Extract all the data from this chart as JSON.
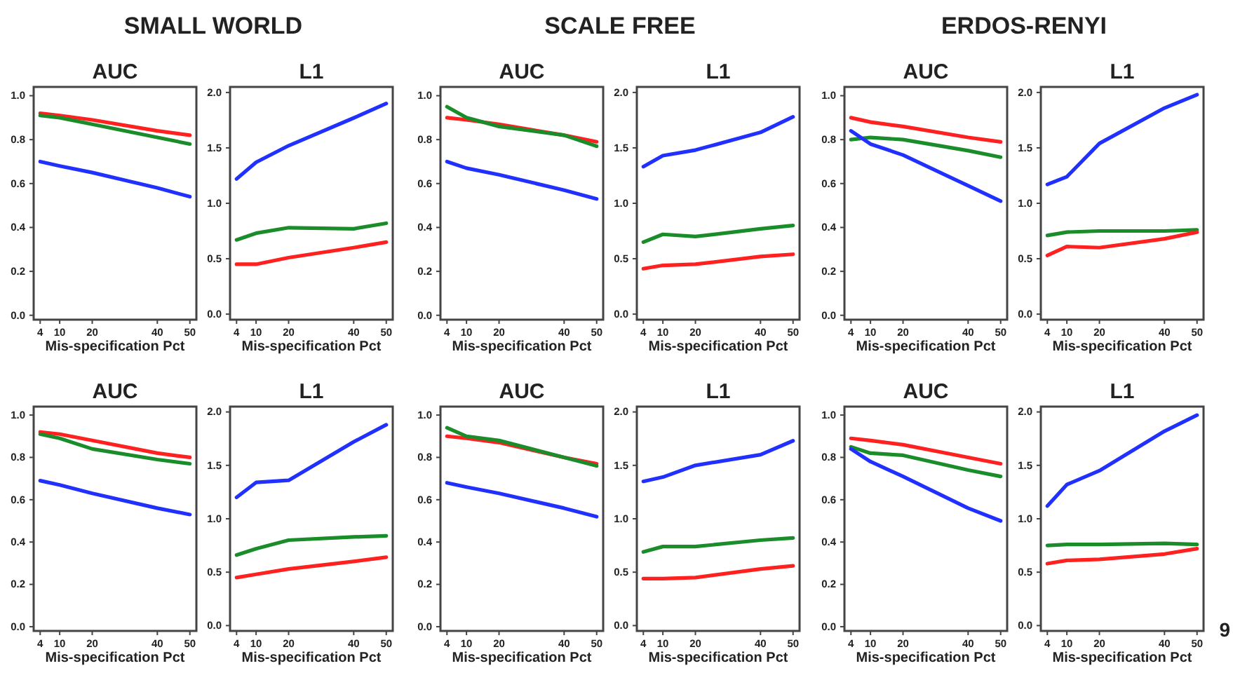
{
  "chart_data": [
    {
      "type": "line",
      "title": "AUC",
      "xlabel": "Mis-specification Pct",
      "annotations": [
        "SMALL WORLD"
      ],
      "x": [
        4,
        10,
        20,
        40,
        50
      ],
      "xlim": [
        2,
        52
      ],
      "xticks": [
        4,
        10,
        20,
        40,
        50
      ],
      "ylim": [
        -0.02,
        1.04
      ],
      "yticks": [
        {
          "value": 0,
          "label": "0.0"
        },
        {
          "value": 0.2,
          "label": "0.2"
        },
        {
          "value": 0.4,
          "label": "0.4"
        },
        {
          "value": 0.6,
          "label": "0.6"
        },
        {
          "value": 0.8,
          "label": "0.8"
        },
        {
          "value": 1,
          "label": "1.0"
        }
      ],
      "series": [
        {
          "color": "#ff2020",
          "values": [
            0.92,
            0.91,
            0.89,
            0.84,
            0.82
          ]
        },
        {
          "color": "#1a8c2a",
          "values": [
            0.91,
            0.9,
            0.87,
            0.81,
            0.78
          ]
        },
        {
          "color": "#2030ff",
          "values": [
            0.7,
            0.68,
            0.65,
            0.58,
            0.54
          ]
        }
      ]
    },
    {
      "type": "line",
      "title": "L1",
      "xlabel": "Mis-specification Pct",
      "x": [
        4,
        10,
        20,
        40,
        50
      ],
      "xlim": [
        2,
        52
      ],
      "xticks": [
        4,
        10,
        20,
        40,
        50
      ],
      "ylim": [
        -0.05,
        2.05
      ],
      "yticks": [
        {
          "value": 0,
          "label": "0.0"
        },
        {
          "value": 0.5,
          "label": "0.5"
        },
        {
          "value": 1,
          "label": "1.0"
        },
        {
          "value": 1.5,
          "label": "1.5"
        },
        {
          "value": 2,
          "label": "2.0"
        }
      ],
      "series": [
        {
          "color": "#2030ff",
          "values": [
            1.22,
            1.37,
            1.52,
            1.77,
            1.9
          ]
        },
        {
          "color": "#1a8c2a",
          "values": [
            0.67,
            0.73,
            0.78,
            0.77,
            0.82
          ]
        },
        {
          "color": "#ff2020",
          "values": [
            0.45,
            0.45,
            0.51,
            0.6,
            0.65
          ]
        }
      ]
    },
    {
      "type": "line",
      "title": "AUC",
      "xlabel": "Mis-specification Pct",
      "annotations": [
        "SCALE FREE"
      ],
      "x": [
        4,
        10,
        20,
        40,
        50
      ],
      "xlim": [
        2,
        52
      ],
      "xticks": [
        4,
        10,
        20,
        40,
        50
      ],
      "ylim": [
        -0.02,
        1.04
      ],
      "yticks": [
        {
          "value": 0,
          "label": "0.0"
        },
        {
          "value": 0.2,
          "label": "0.2"
        },
        {
          "value": 0.4,
          "label": "0.4"
        },
        {
          "value": 0.6,
          "label": "0.6"
        },
        {
          "value": 0.8,
          "label": "0.8"
        },
        {
          "value": 1,
          "label": "1.0"
        }
      ],
      "series": [
        {
          "color": "#ff2020",
          "values": [
            0.9,
            0.89,
            0.87,
            0.82,
            0.79
          ]
        },
        {
          "color": "#1a8c2a",
          "values": [
            0.95,
            0.9,
            0.86,
            0.82,
            0.77
          ]
        },
        {
          "color": "#2030ff",
          "values": [
            0.7,
            0.67,
            0.64,
            0.57,
            0.53
          ]
        }
      ]
    },
    {
      "type": "line",
      "title": "L1",
      "xlabel": "Mis-specification Pct",
      "x": [
        4,
        10,
        20,
        40,
        50
      ],
      "xlim": [
        2,
        52
      ],
      "xticks": [
        4,
        10,
        20,
        40,
        50
      ],
      "ylim": [
        -0.05,
        2.05
      ],
      "yticks": [
        {
          "value": 0,
          "label": "0.0"
        },
        {
          "value": 0.5,
          "label": "0.5"
        },
        {
          "value": 1,
          "label": "1.0"
        },
        {
          "value": 1.5,
          "label": "1.5"
        },
        {
          "value": 2,
          "label": "2.0"
        }
      ],
      "series": [
        {
          "color": "#2030ff",
          "values": [
            1.33,
            1.43,
            1.48,
            1.64,
            1.78
          ]
        },
        {
          "color": "#1a8c2a",
          "values": [
            0.65,
            0.72,
            0.7,
            0.77,
            0.8
          ]
        },
        {
          "color": "#ff2020",
          "values": [
            0.41,
            0.44,
            0.45,
            0.52,
            0.54
          ]
        }
      ]
    },
    {
      "type": "line",
      "title": "AUC",
      "xlabel": "Mis-specification Pct",
      "annotations": [
        "ERDOS-RENYI"
      ],
      "x": [
        4,
        10,
        20,
        40,
        50
      ],
      "xlim": [
        2,
        52
      ],
      "xticks": [
        4,
        10,
        20,
        40,
        50
      ],
      "ylim": [
        -0.02,
        1.04
      ],
      "yticks": [
        {
          "value": 0,
          "label": "0.0"
        },
        {
          "value": 0.2,
          "label": "0.2"
        },
        {
          "value": 0.4,
          "label": "0.4"
        },
        {
          "value": 0.6,
          "label": "0.6"
        },
        {
          "value": 0.8,
          "label": "0.8"
        },
        {
          "value": 1,
          "label": "1.0"
        }
      ],
      "series": [
        {
          "color": "#ff2020",
          "values": [
            0.9,
            0.88,
            0.86,
            0.81,
            0.79
          ]
        },
        {
          "color": "#1a8c2a",
          "values": [
            0.8,
            0.81,
            0.8,
            0.75,
            0.72
          ]
        },
        {
          "color": "#2030ff",
          "values": [
            0.84,
            0.78,
            0.73,
            0.59,
            0.52
          ]
        }
      ]
    },
    {
      "type": "line",
      "title": "L1",
      "xlabel": "Mis-specification Pct",
      "x": [
        4,
        10,
        20,
        40,
        50
      ],
      "xlim": [
        2,
        52
      ],
      "xticks": [
        4,
        10,
        20,
        40,
        50
      ],
      "ylim": [
        -0.05,
        2.05
      ],
      "yticks": [
        {
          "value": 0,
          "label": "0.0"
        },
        {
          "value": 0.5,
          "label": "0.5"
        },
        {
          "value": 1,
          "label": "1.0"
        },
        {
          "value": 1.5,
          "label": "1.5"
        },
        {
          "value": 2,
          "label": "2.0"
        }
      ],
      "series": [
        {
          "color": "#2030ff",
          "values": [
            1.17,
            1.24,
            1.54,
            1.86,
            1.98
          ]
        },
        {
          "color": "#1a8c2a",
          "values": [
            0.71,
            0.74,
            0.75,
            0.75,
            0.76
          ]
        },
        {
          "color": "#ff2020",
          "values": [
            0.53,
            0.61,
            0.6,
            0.68,
            0.74
          ]
        }
      ]
    },
    {
      "type": "line",
      "title": "AUC",
      "xlabel": "Mis-specification Pct",
      "x": [
        4,
        10,
        20,
        40,
        50
      ],
      "xlim": [
        2,
        52
      ],
      "xticks": [
        4,
        10,
        20,
        40,
        50
      ],
      "ylim": [
        -0.02,
        1.04
      ],
      "yticks": [
        {
          "value": 0,
          "label": "0.0"
        },
        {
          "value": 0.2,
          "label": "0.2"
        },
        {
          "value": 0.4,
          "label": "0.4"
        },
        {
          "value": 0.6,
          "label": "0.6"
        },
        {
          "value": 0.8,
          "label": "0.8"
        },
        {
          "value": 1,
          "label": "1.0"
        }
      ],
      "series": [
        {
          "color": "#ff2020",
          "values": [
            0.92,
            0.91,
            0.88,
            0.82,
            0.8
          ]
        },
        {
          "color": "#1a8c2a",
          "values": [
            0.91,
            0.89,
            0.84,
            0.79,
            0.77
          ]
        },
        {
          "color": "#2030ff",
          "values": [
            0.69,
            0.67,
            0.63,
            0.56,
            0.53
          ]
        }
      ]
    },
    {
      "type": "line",
      "title": "L1",
      "xlabel": "Mis-specification Pct",
      "x": [
        4,
        10,
        20,
        40,
        50
      ],
      "xlim": [
        2,
        52
      ],
      "xticks": [
        4,
        10,
        20,
        40,
        50
      ],
      "ylim": [
        -0.05,
        2.05
      ],
      "yticks": [
        {
          "value": 0,
          "label": "0.0"
        },
        {
          "value": 0.5,
          "label": "0.5"
        },
        {
          "value": 1,
          "label": "1.0"
        },
        {
          "value": 1.5,
          "label": "1.5"
        },
        {
          "value": 2,
          "label": "2.0"
        }
      ],
      "series": [
        {
          "color": "#2030ff",
          "values": [
            1.2,
            1.34,
            1.36,
            1.72,
            1.88
          ]
        },
        {
          "color": "#1a8c2a",
          "values": [
            0.66,
            0.72,
            0.8,
            0.83,
            0.84
          ]
        },
        {
          "color": "#ff2020",
          "values": [
            0.45,
            0.48,
            0.53,
            0.6,
            0.64
          ]
        }
      ]
    },
    {
      "type": "line",
      "title": "AUC",
      "xlabel": "Mis-specification Pct",
      "x": [
        4,
        10,
        20,
        40,
        50
      ],
      "xlim": [
        2,
        52
      ],
      "xticks": [
        4,
        10,
        20,
        40,
        50
      ],
      "ylim": [
        -0.02,
        1.04
      ],
      "yticks": [
        {
          "value": 0,
          "label": "0.0"
        },
        {
          "value": 0.2,
          "label": "0.2"
        },
        {
          "value": 0.4,
          "label": "0.4"
        },
        {
          "value": 0.6,
          "label": "0.6"
        },
        {
          "value": 0.8,
          "label": "0.8"
        },
        {
          "value": 1,
          "label": "1.0"
        }
      ],
      "series": [
        {
          "color": "#ff2020",
          "values": [
            0.9,
            0.89,
            0.87,
            0.8,
            0.77
          ]
        },
        {
          "color": "#1a8c2a",
          "values": [
            0.94,
            0.9,
            0.88,
            0.8,
            0.76
          ]
        },
        {
          "color": "#2030ff",
          "values": [
            0.68,
            0.66,
            0.63,
            0.56,
            0.52
          ]
        }
      ]
    },
    {
      "type": "line",
      "title": "L1",
      "xlabel": "Mis-specification Pct",
      "x": [
        4,
        10,
        20,
        40,
        50
      ],
      "xlim": [
        2,
        52
      ],
      "xticks": [
        4,
        10,
        20,
        40,
        50
      ],
      "ylim": [
        -0.05,
        2.05
      ],
      "yticks": [
        {
          "value": 0,
          "label": "0.0"
        },
        {
          "value": 0.5,
          "label": "0.5"
        },
        {
          "value": 1,
          "label": "1.0"
        },
        {
          "value": 1.5,
          "label": "1.5"
        },
        {
          "value": 2,
          "label": "2.0"
        }
      ],
      "series": [
        {
          "color": "#2030ff",
          "values": [
            1.35,
            1.39,
            1.5,
            1.6,
            1.73
          ]
        },
        {
          "color": "#1a8c2a",
          "values": [
            0.69,
            0.74,
            0.74,
            0.8,
            0.82
          ]
        },
        {
          "color": "#ff2020",
          "values": [
            0.44,
            0.44,
            0.45,
            0.53,
            0.56
          ]
        }
      ]
    },
    {
      "type": "line",
      "title": "AUC",
      "xlabel": "Mis-specification Pct",
      "x": [
        4,
        10,
        20,
        40,
        50
      ],
      "xlim": [
        2,
        52
      ],
      "xticks": [
        4,
        10,
        20,
        40,
        50
      ],
      "ylim": [
        -0.02,
        1.04
      ],
      "yticks": [
        {
          "value": 0,
          "label": "0.0"
        },
        {
          "value": 0.2,
          "label": "0.2"
        },
        {
          "value": 0.4,
          "label": "0.4"
        },
        {
          "value": 0.6,
          "label": "0.6"
        },
        {
          "value": 0.8,
          "label": "0.8"
        },
        {
          "value": 1,
          "label": "1.0"
        }
      ],
      "series": [
        {
          "color": "#ff2020",
          "values": [
            0.89,
            0.88,
            0.86,
            0.8,
            0.77
          ]
        },
        {
          "color": "#1a8c2a",
          "values": [
            0.85,
            0.82,
            0.81,
            0.74,
            0.71
          ]
        },
        {
          "color": "#2030ff",
          "values": [
            0.84,
            0.78,
            0.71,
            0.56,
            0.5
          ]
        }
      ]
    },
    {
      "type": "line",
      "title": "L1",
      "xlabel": "Mis-specification Pct",
      "annotations": [
        "9"
      ],
      "x": [
        4,
        10,
        20,
        40,
        50
      ],
      "xlim": [
        2,
        52
      ],
      "xticks": [
        4,
        10,
        20,
        40,
        50
      ],
      "ylim": [
        -0.05,
        2.05
      ],
      "yticks": [
        {
          "value": 0,
          "label": "0.0"
        },
        {
          "value": 0.5,
          "label": "0.5"
        },
        {
          "value": 1,
          "label": "1.0"
        },
        {
          "value": 1.5,
          "label": "1.5"
        },
        {
          "value": 2,
          "label": "2.0"
        }
      ],
      "series": [
        {
          "color": "#2030ff",
          "values": [
            1.12,
            1.32,
            1.45,
            1.82,
            1.97
          ]
        },
        {
          "color": "#1a8c2a",
          "values": [
            0.75,
            0.76,
            0.76,
            0.77,
            0.76
          ]
        },
        {
          "color": "#ff2020",
          "values": [
            0.58,
            0.61,
            0.62,
            0.67,
            0.72
          ]
        }
      ]
    }
  ]
}
